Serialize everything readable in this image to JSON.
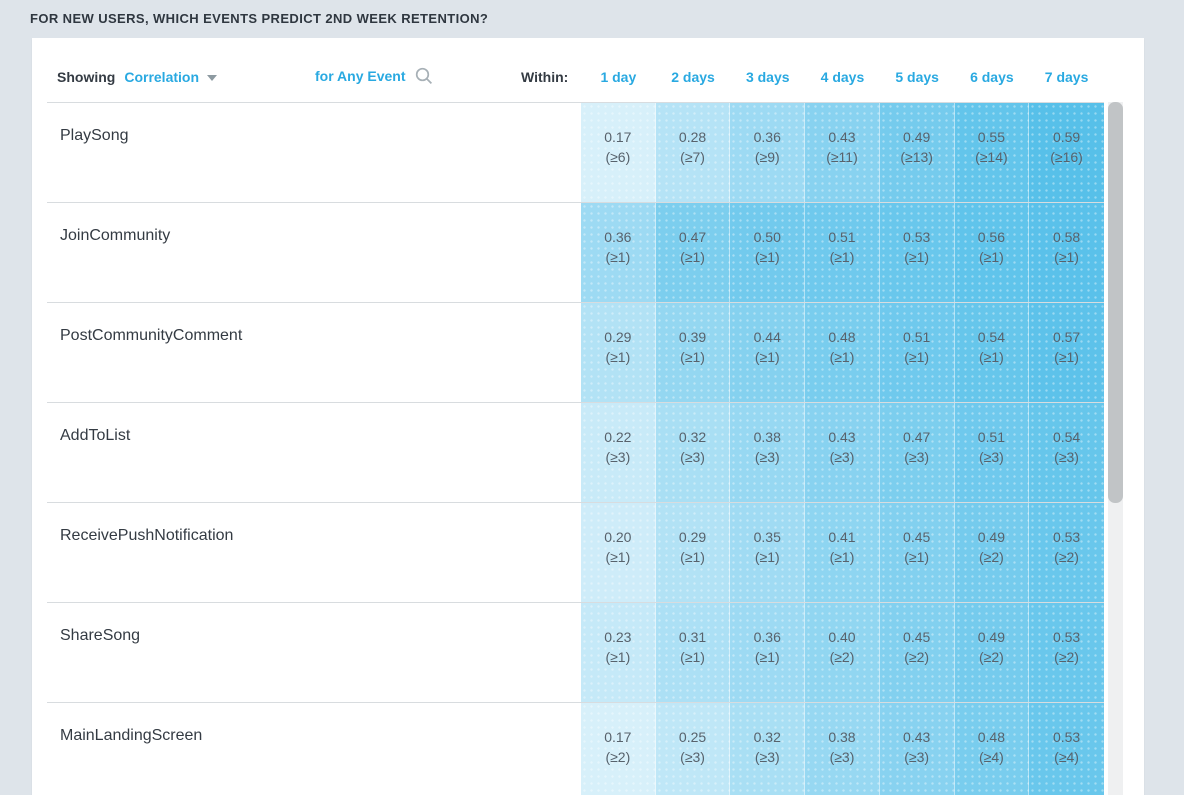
{
  "page_title": "FOR NEW USERS, WHICH EVENTS PREDICT 2ND WEEK RETENTION?",
  "controls": {
    "showing_label": "Showing",
    "metric_dropdown": "Correlation",
    "event_filter": "for Any Event",
    "within_label": "Within:"
  },
  "columns": [
    "1 day",
    "2 days",
    "3 days",
    "4 days",
    "5 days",
    "6 days",
    "7 days"
  ],
  "rows": [
    {
      "event": "PlaySong",
      "cells": [
        {
          "value": "0.17",
          "threshold": "(≥6)"
        },
        {
          "value": "0.28",
          "threshold": "(≥7)"
        },
        {
          "value": "0.36",
          "threshold": "(≥9)"
        },
        {
          "value": "0.43",
          "threshold": "(≥11)"
        },
        {
          "value": "0.49",
          "threshold": "(≥13)"
        },
        {
          "value": "0.55",
          "threshold": "(≥14)"
        },
        {
          "value": "0.59",
          "threshold": "(≥16)"
        }
      ]
    },
    {
      "event": "JoinCommunity",
      "cells": [
        {
          "value": "0.36",
          "threshold": "(≥1)"
        },
        {
          "value": "0.47",
          "threshold": "(≥1)"
        },
        {
          "value": "0.50",
          "threshold": "(≥1)"
        },
        {
          "value": "0.51",
          "threshold": "(≥1)"
        },
        {
          "value": "0.53",
          "threshold": "(≥1)"
        },
        {
          "value": "0.56",
          "threshold": "(≥1)"
        },
        {
          "value": "0.58",
          "threshold": "(≥1)"
        }
      ]
    },
    {
      "event": "PostCommunityComment",
      "cells": [
        {
          "value": "0.29",
          "threshold": "(≥1)"
        },
        {
          "value": "0.39",
          "threshold": "(≥1)"
        },
        {
          "value": "0.44",
          "threshold": "(≥1)"
        },
        {
          "value": "0.48",
          "threshold": "(≥1)"
        },
        {
          "value": "0.51",
          "threshold": "(≥1)"
        },
        {
          "value": "0.54",
          "threshold": "(≥1)"
        },
        {
          "value": "0.57",
          "threshold": "(≥1)"
        }
      ]
    },
    {
      "event": "AddToList",
      "cells": [
        {
          "value": "0.22",
          "threshold": "(≥3)"
        },
        {
          "value": "0.32",
          "threshold": "(≥3)"
        },
        {
          "value": "0.38",
          "threshold": "(≥3)"
        },
        {
          "value": "0.43",
          "threshold": "(≥3)"
        },
        {
          "value": "0.47",
          "threshold": "(≥3)"
        },
        {
          "value": "0.51",
          "threshold": "(≥3)"
        },
        {
          "value": "0.54",
          "threshold": "(≥3)"
        }
      ]
    },
    {
      "event": "ReceivePushNotification",
      "cells": [
        {
          "value": "0.20",
          "threshold": "(≥1)"
        },
        {
          "value": "0.29",
          "threshold": "(≥1)"
        },
        {
          "value": "0.35",
          "threshold": "(≥1)"
        },
        {
          "value": "0.41",
          "threshold": "(≥1)"
        },
        {
          "value": "0.45",
          "threshold": "(≥1)"
        },
        {
          "value": "0.49",
          "threshold": "(≥2)"
        },
        {
          "value": "0.53",
          "threshold": "(≥2)"
        }
      ]
    },
    {
      "event": "ShareSong",
      "cells": [
        {
          "value": "0.23",
          "threshold": "(≥1)"
        },
        {
          "value": "0.31",
          "threshold": "(≥1)"
        },
        {
          "value": "0.36",
          "threshold": "(≥1)"
        },
        {
          "value": "0.40",
          "threshold": "(≥2)"
        },
        {
          "value": "0.45",
          "threshold": "(≥2)"
        },
        {
          "value": "0.49",
          "threshold": "(≥2)"
        },
        {
          "value": "0.53",
          "threshold": "(≥2)"
        }
      ]
    },
    {
      "event": "MainLandingScreen",
      "cells": [
        {
          "value": "0.17",
          "threshold": "(≥2)"
        },
        {
          "value": "0.25",
          "threshold": "(≥3)"
        },
        {
          "value": "0.32",
          "threshold": "(≥3)"
        },
        {
          "value": "0.38",
          "threshold": "(≥3)"
        },
        {
          "value": "0.43",
          "threshold": "(≥3)"
        },
        {
          "value": "0.48",
          "threshold": "(≥4)"
        },
        {
          "value": "0.53",
          "threshold": "(≥4)"
        }
      ]
    }
  ],
  "heatmap_scale": {
    "low_color": "#ddf2fb",
    "high_color": "#54bfe9",
    "value_domain": [
      0.15,
      0.6
    ]
  },
  "accent_color": "#29a9e1"
}
